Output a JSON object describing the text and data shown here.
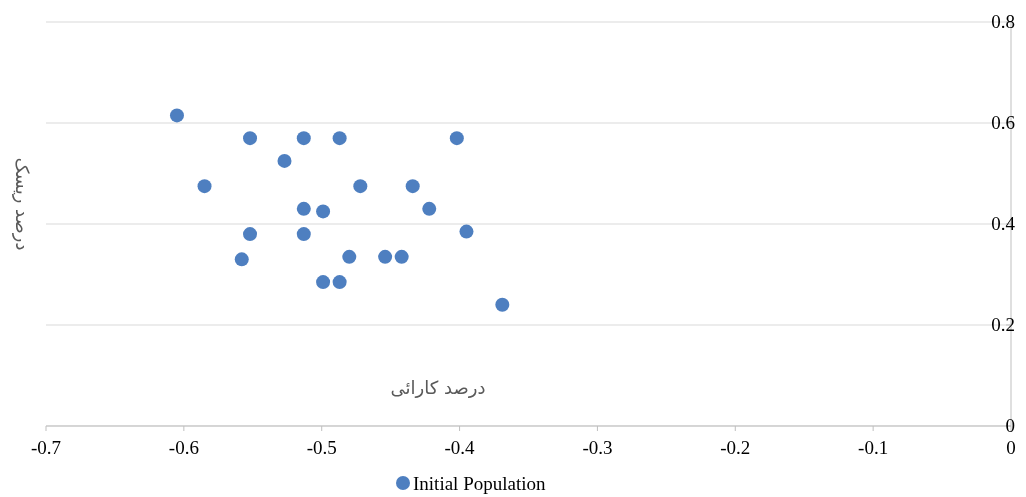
{
  "chart_data": {
    "type": "scatter",
    "xlabel": "درصد کارائی",
    "ylabel": "درصد ریسک",
    "xlim": [
      -0.7,
      0
    ],
    "xticks": [
      -0.7,
      -0.6,
      -0.5,
      -0.4,
      -0.3,
      -0.2,
      -0.1,
      0
    ],
    "ylim": [
      0,
      0.8
    ],
    "yticks": [
      0,
      0.2,
      0.4,
      0.6,
      0.8
    ],
    "grid": "y",
    "legend": "bottom",
    "marker": "circle",
    "series": [
      {
        "name": "Initial Population",
        "color": "#4e7fc0",
        "x": [
          -0.605,
          -0.552,
          -0.513,
          -0.487,
          -0.402,
          -0.527,
          -0.585,
          -0.472,
          -0.434,
          -0.513,
          -0.499,
          -0.422,
          -0.552,
          -0.513,
          -0.395,
          -0.558,
          -0.48,
          -0.454,
          -0.442,
          -0.499,
          -0.487,
          -0.369
        ],
        "values": [
          0.615,
          0.57,
          0.57,
          0.57,
          0.57,
          0.525,
          0.475,
          0.475,
          0.475,
          0.43,
          0.425,
          0.43,
          0.38,
          0.38,
          0.385,
          0.33,
          0.335,
          0.335,
          0.335,
          0.285,
          0.285,
          0.24
        ]
      }
    ]
  }
}
